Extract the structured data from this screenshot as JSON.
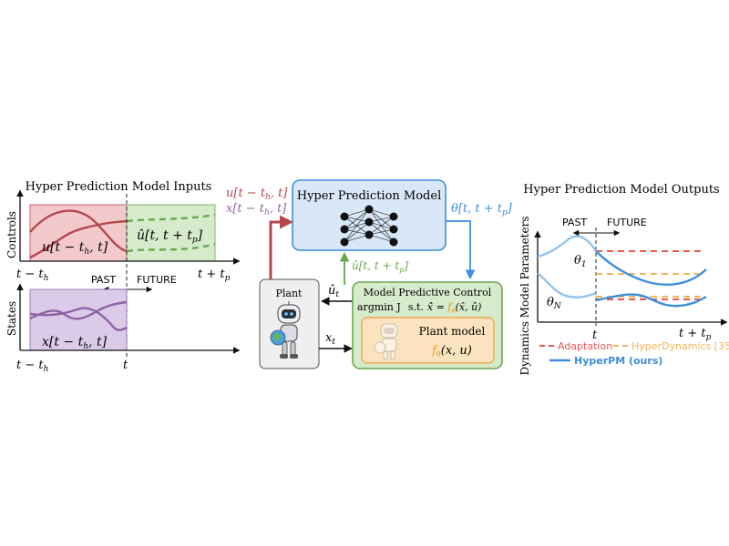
{
  "left": {
    "title": "Hyper Prediction Model Inputs",
    "controls_axis": "Controls",
    "states_axis": "States",
    "u_past": "u[t − t",
    "u_past_sub": "h",
    "u_past_end": ", t]",
    "u_future": "û[t, t + t",
    "u_future_sub": "p",
    "u_future_end": "]",
    "x_past": "x[t − t",
    "x_past_sub": "h",
    "x_past_end": ", t]",
    "tick_left": "t − t",
    "tick_left_sub": "h",
    "tick_right": "t + t",
    "tick_right_sub": "p",
    "tick_t": "t",
    "tick_left2": "t − t",
    "tick_left2_sub": "h",
    "past": "PAST",
    "future": "FUTURE"
  },
  "middle": {
    "in_u": "u[t − t",
    "in_u_sub": "h",
    "in_u_end": ", t]",
    "in_x": "x[t − t",
    "in_x_sub": "h",
    "in_x_end": ", t]",
    "hpm_title": "Hyper Prediction Model",
    "theta_out": "θ[t, t + t",
    "theta_out_sub": "p",
    "theta_out_end": "]",
    "uhat_up": "û[t, t + t",
    "uhat_up_sub": "p",
    "uhat_up_end": "]",
    "plant_title": "Plant",
    "ut_label": "û",
    "ut_sub": "t",
    "xt_label": "x",
    "xt_sub": "t",
    "mpc_title": "Model Predictive Control",
    "mpc_eq1": "argmin J",
    "mpc_eq2": "s.t.",
    "mpc_eq3": "x̂̇ = ",
    "mpc_eq4": "f",
    "mpc_eq4_sub": "θ",
    "mpc_eq5": "(x̂, û)",
    "plant_model_title": "Plant model",
    "plant_model_f": "f",
    "plant_model_sub": "θ",
    "plant_model_args": "(x, u)"
  },
  "right": {
    "title": "Hyper Prediction Model Outputs",
    "yaxis": "Dynamics Model Parameters",
    "past": "PAST",
    "future": "FUTURE",
    "theta1": "θ",
    "theta1_sub": "1",
    "thetaN": "θ",
    "thetaN_sub": "N",
    "tick_t": "t",
    "tick_end": "t + t",
    "tick_end_sub": "p",
    "legend_adaptation": "Adaptation",
    "legend_hyperdyn": "HyperDynamics [35]",
    "legend_hyperpm": "HyperPM (ours)"
  },
  "colors": {
    "red": "#b5474c",
    "red_fill": "#f3c9cc",
    "green": "#6aa84f",
    "green_fill": "#d6ebcc",
    "purple": "#8e62a8",
    "purple_fill": "#dccbe8",
    "blue": "#3c8ee0",
    "blue_fill": "#d9e8f8",
    "orange": "#f0a84a",
    "orange_fill": "#fbe3bf",
    "adapt": "#e8574d",
    "hyperdyn": "#f2b45c",
    "hyperpm": "#3d8fdc",
    "light_blue": "#93c3ec",
    "plant_fill": "#efefef"
  },
  "icons": [
    "neural-network-icon",
    "robot-icon"
  ]
}
